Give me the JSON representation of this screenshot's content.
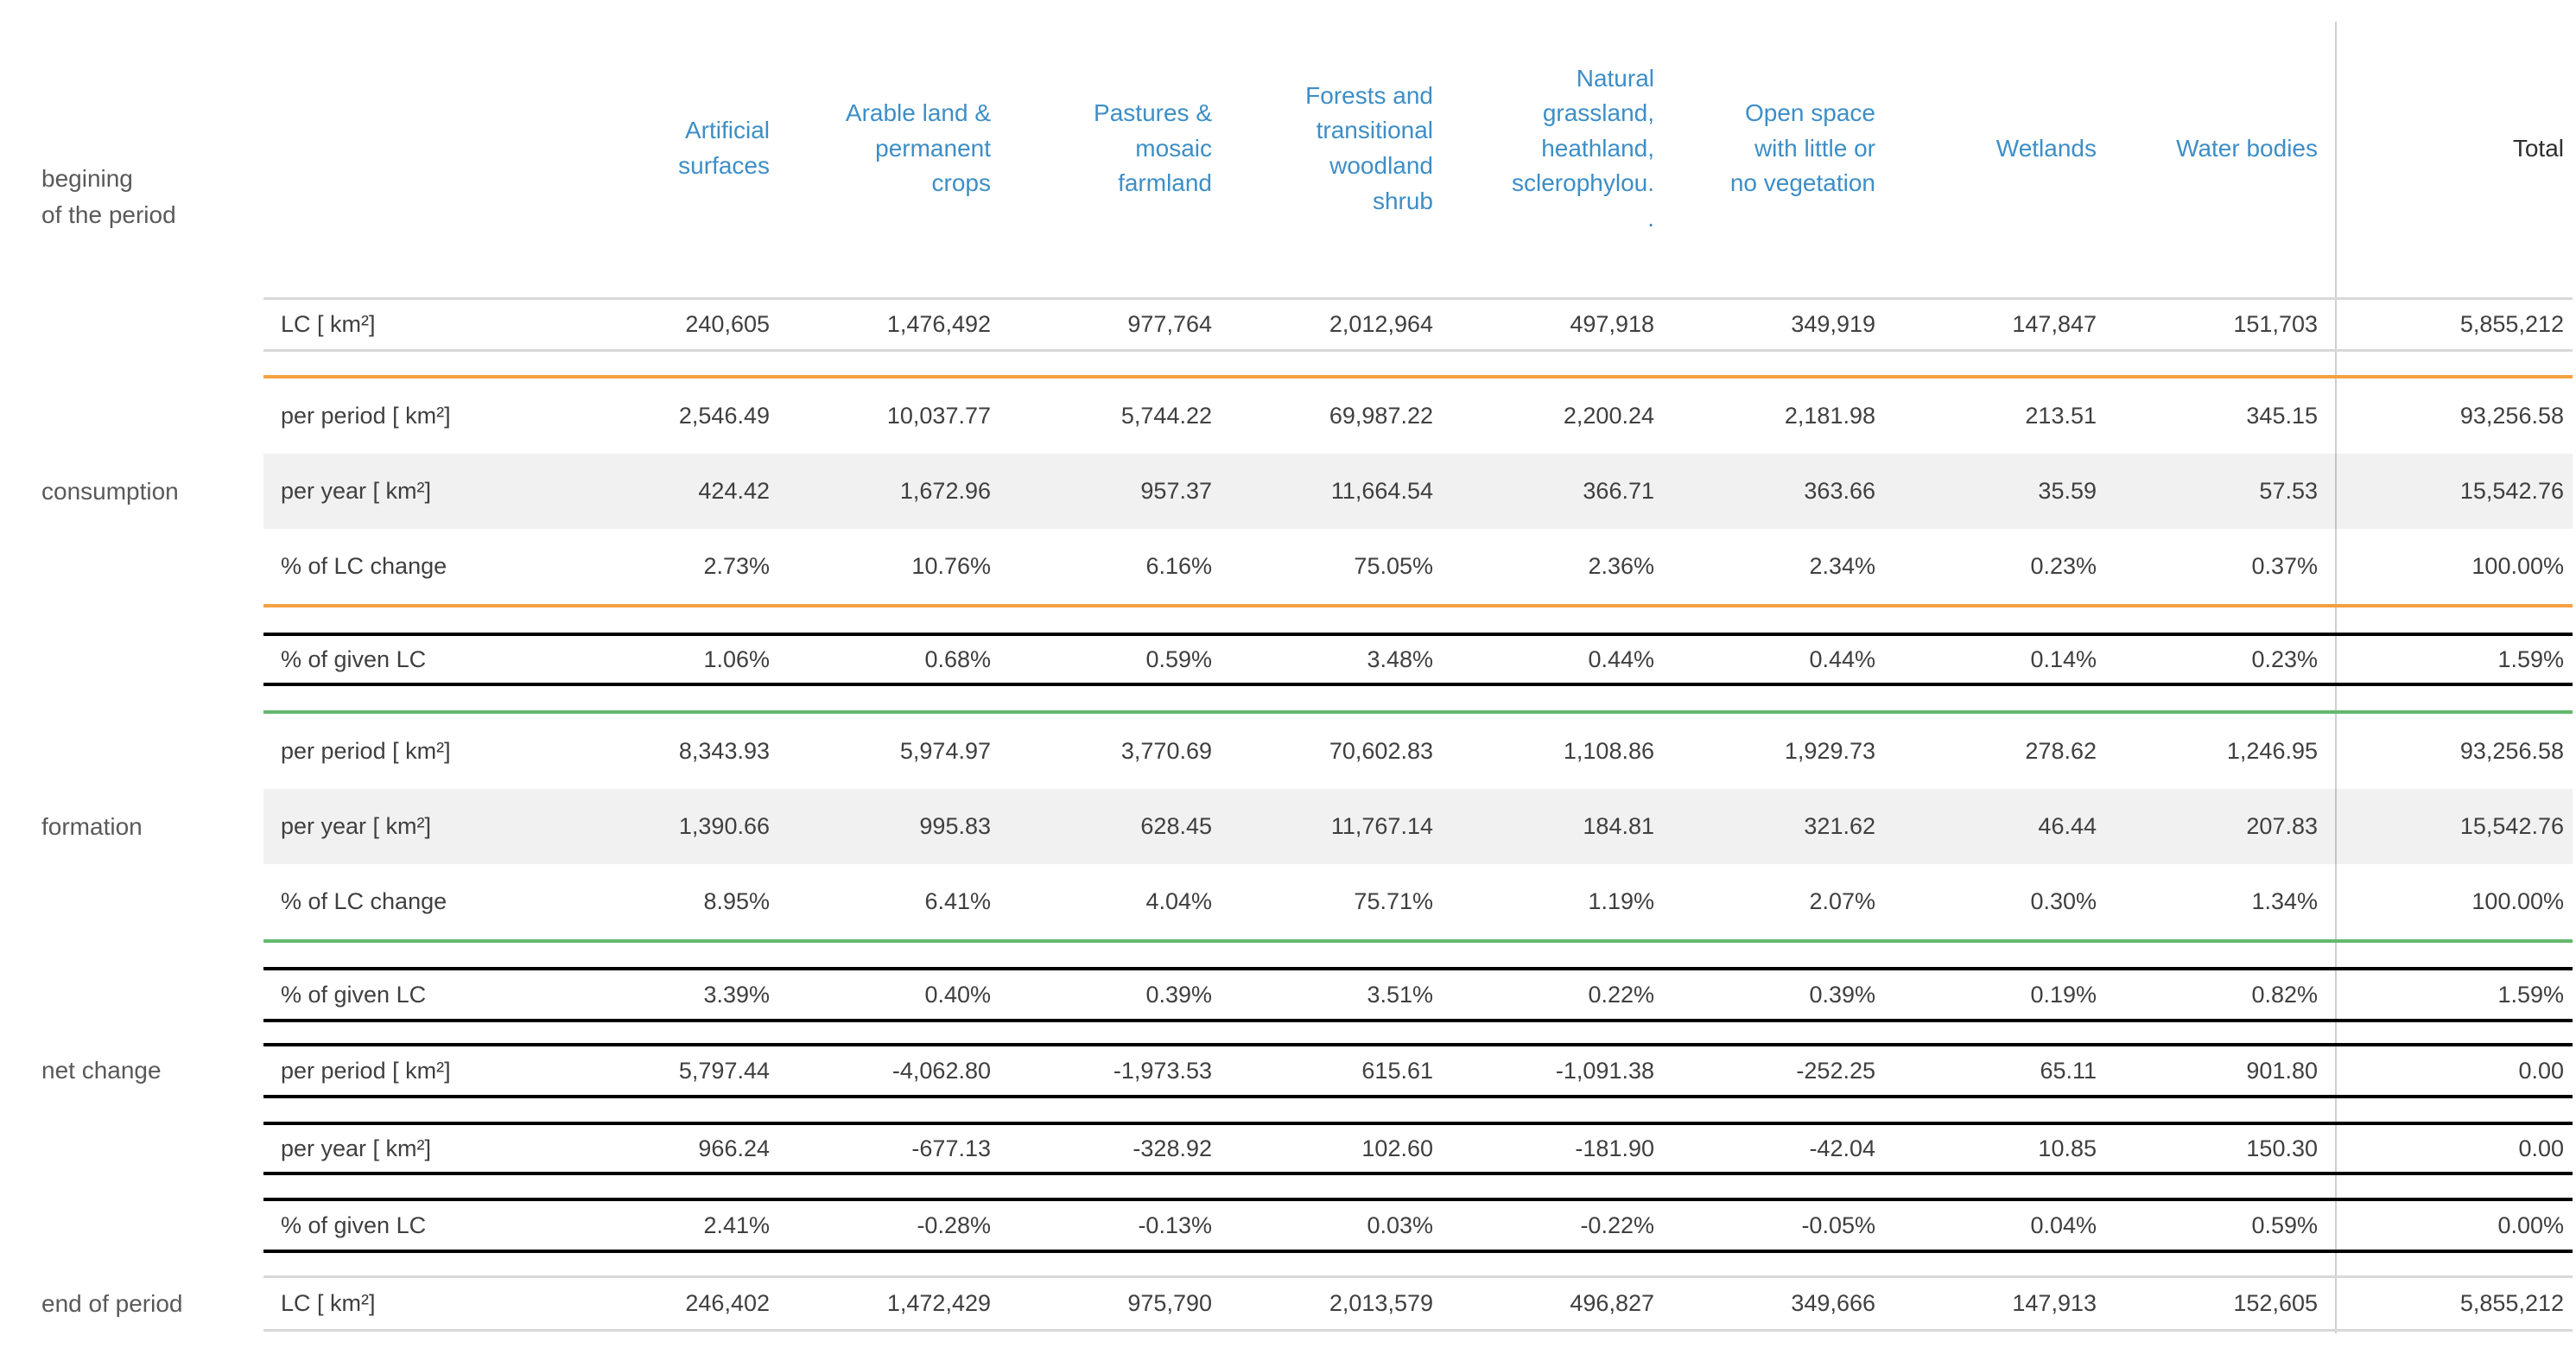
{
  "colors": {
    "header_text": "#3d8ec6",
    "consumption_accent": "#f5a142",
    "formation_accent": "#62b96e",
    "net_change_accent": "#7ca7ce",
    "row_border_gray": "#d8d8d8",
    "body_text": "#3f3f3f",
    "group_label_text": "#595959"
  },
  "header": {
    "begin_group_label": "begining\nof the period",
    "columns": [
      "Artificial\nsurfaces",
      "Arable land &\npermanent\ncrops",
      "Pastures &\nmosaic\nfarmland",
      "Forests and\ntransitional\nwoodland\nshrub",
      "Natural\ngrassland,\nheathland,\nsclerophylou.\n.",
      "Open space\nwith little or\nno vegetation",
      "Wetlands",
      "Water bodies",
      "Total"
    ]
  },
  "begin": {
    "label": "LC [ km²]",
    "values": [
      "240,605",
      "1,476,492",
      "977,764",
      "2,012,964",
      "497,918",
      "349,919",
      "147,847",
      "151,703",
      "5,855,212"
    ]
  },
  "consumption": {
    "group_label": "consumption",
    "rows": [
      {
        "label": "per period [ km²]",
        "values": [
          "2,546.49",
          "10,037.77",
          "5,744.22",
          "69,987.22",
          "2,200.24",
          "2,181.98",
          "213.51",
          "345.15",
          "93,256.58"
        ]
      },
      {
        "label": "per year [ km²]",
        "values": [
          "424.42",
          "1,672.96",
          "957.37",
          "11,664.54",
          "366.71",
          "363.66",
          "35.59",
          "57.53",
          "15,542.76"
        ]
      },
      {
        "label": "% of LC change",
        "values": [
          "2.73%",
          "10.76%",
          "6.16%",
          "75.05%",
          "2.36%",
          "2.34%",
          "0.23%",
          "0.37%",
          "100.00%"
        ]
      }
    ],
    "given": {
      "label": "% of given LC",
      "values": [
        "1.06%",
        "0.68%",
        "0.59%",
        "3.48%",
        "0.44%",
        "0.44%",
        "0.14%",
        "0.23%",
        "1.59%"
      ]
    }
  },
  "formation": {
    "group_label": "formation",
    "rows": [
      {
        "label": "per period [ km²]",
        "values": [
          "8,343.93",
          "5,974.97",
          "3,770.69",
          "70,602.83",
          "1,108.86",
          "1,929.73",
          "278.62",
          "1,246.95",
          "93,256.58"
        ]
      },
      {
        "label": "per year [ km²]",
        "values": [
          "1,390.66",
          "995.83",
          "628.45",
          "11,767.14",
          "184.81",
          "321.62",
          "46.44",
          "207.83",
          "15,542.76"
        ]
      },
      {
        "label": "% of LC change",
        "values": [
          "8.95%",
          "6.41%",
          "4.04%",
          "75.71%",
          "1.19%",
          "2.07%",
          "0.30%",
          "1.34%",
          "100.00%"
        ]
      }
    ],
    "given": {
      "label": "% of given LC",
      "values": [
        "3.39%",
        "0.40%",
        "0.39%",
        "3.51%",
        "0.22%",
        "0.39%",
        "0.19%",
        "0.82%",
        "1.59%"
      ]
    }
  },
  "net_change": {
    "group_label": "net change",
    "per_period": {
      "label": "per period [ km²]",
      "values": [
        "5,797.44",
        "-4,062.80",
        "-1,973.53",
        "615.61",
        "-1,091.38",
        "-252.25",
        "65.11",
        "901.80",
        "0.00"
      ]
    },
    "per_year": {
      "label": "per year [ km²]",
      "values": [
        "966.24",
        "-677.13",
        "-328.92",
        "102.60",
        "-181.90",
        "-42.04",
        "10.85",
        "150.30",
        "0.00"
      ]
    },
    "given": {
      "label": "% of given LC",
      "values": [
        "2.41%",
        "-0.28%",
        "-0.13%",
        "0.03%",
        "-0.22%",
        "-0.05%",
        "0.04%",
        "0.59%",
        "0.00%"
      ]
    }
  },
  "end": {
    "group_label": "end of period",
    "label": "LC [ km²]",
    "values": [
      "246,402",
      "1,472,429",
      "975,790",
      "2,013,579",
      "496,827",
      "349,666",
      "147,913",
      "152,605",
      "5,855,212"
    ]
  },
  "chart_data": {
    "type": "table",
    "columns": [
      "Artificial surfaces",
      "Arable land & permanent crops",
      "Pastures & mosaic farmland",
      "Forests and transitional woodland shrub",
      "Natural grassland, heathland, sclerophylou.",
      "Open space with little or no vegetation",
      "Wetlands",
      "Water bodies",
      "Total"
    ],
    "row_groups": [
      {
        "group": "begining of the period",
        "rows": [
          {
            "label": "LC [ km²]",
            "values": [
              240605,
              1476492,
              977764,
              2012964,
              497918,
              349919,
              147847,
              151703,
              5855212
            ]
          }
        ]
      },
      {
        "group": "consumption",
        "rows": [
          {
            "label": "per period [ km²]",
            "values": [
              2546.49,
              10037.77,
              5744.22,
              69987.22,
              2200.24,
              2181.98,
              213.51,
              345.15,
              93256.58
            ]
          },
          {
            "label": "per year [ km²]",
            "values": [
              424.42,
              1672.96,
              957.37,
              11664.54,
              366.71,
              363.66,
              35.59,
              57.53,
              15542.76
            ]
          },
          {
            "label": "% of LC change",
            "values": [
              2.73,
              10.76,
              6.16,
              75.05,
              2.36,
              2.34,
              0.23,
              0.37,
              100.0
            ]
          },
          {
            "label": "% of given LC",
            "values": [
              1.06,
              0.68,
              0.59,
              3.48,
              0.44,
              0.44,
              0.14,
              0.23,
              1.59
            ]
          }
        ]
      },
      {
        "group": "formation",
        "rows": [
          {
            "label": "per period [ km²]",
            "values": [
              8343.93,
              5974.97,
              3770.69,
              70602.83,
              1108.86,
              1929.73,
              278.62,
              1246.95,
              93256.58
            ]
          },
          {
            "label": "per year [ km²]",
            "values": [
              1390.66,
              995.83,
              628.45,
              11767.14,
              184.81,
              321.62,
              46.44,
              207.83,
              15542.76
            ]
          },
          {
            "label": "% of LC change",
            "values": [
              8.95,
              6.41,
              4.04,
              75.71,
              1.19,
              2.07,
              0.3,
              1.34,
              100.0
            ]
          },
          {
            "label": "% of given LC",
            "values": [
              3.39,
              0.4,
              0.39,
              3.51,
              0.22,
              0.39,
              0.19,
              0.82,
              1.59
            ]
          }
        ]
      },
      {
        "group": "net change",
        "rows": [
          {
            "label": "per period [ km²]",
            "values": [
              5797.44,
              -4062.8,
              -1973.53,
              615.61,
              -1091.38,
              -252.25,
              65.11,
              901.8,
              0.0
            ]
          },
          {
            "label": "per year [ km²]",
            "values": [
              966.24,
              -677.13,
              -328.92,
              102.6,
              -181.9,
              -42.04,
              10.85,
              150.3,
              0.0
            ]
          },
          {
            "label": "% of given LC",
            "values": [
              2.41,
              -0.28,
              -0.13,
              0.03,
              -0.22,
              -0.05,
              0.04,
              0.59,
              0.0
            ]
          }
        ]
      },
      {
        "group": "end of period",
        "rows": [
          {
            "label": "LC [ km²]",
            "values": [
              246402,
              1472429,
              975790,
              2013579,
              496827,
              349666,
              147913,
              152605,
              5855212
            ]
          }
        ]
      }
    ]
  }
}
